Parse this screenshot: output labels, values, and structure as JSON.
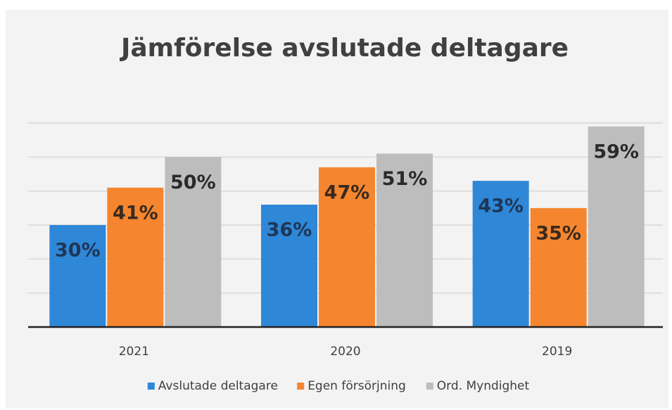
{
  "chart_data": {
    "type": "bar",
    "title": "Jämförelse avslutade deltagare",
    "categories": [
      "2021",
      "2020",
      "2019"
    ],
    "series": [
      {
        "name": "Avslutade deltagare",
        "color": "#2f87d8",
        "values": [
          30,
          36,
          43
        ],
        "value_labels": [
          "30%",
          "36%",
          "43%"
        ]
      },
      {
        "name": "Egen försörjning",
        "color": "#f5862f",
        "values": [
          41,
          47,
          35
        ],
        "value_labels": [
          "41%",
          "47%",
          "35%"
        ]
      },
      {
        "name": "Ord. Myndighet",
        "color": "#bdbdbd",
        "values": [
          50,
          51,
          59
        ],
        "value_labels": [
          "50%",
          "51%",
          "59%"
        ]
      }
    ],
    "ylim": [
      0,
      60
    ],
    "yticks": [
      0,
      10,
      20,
      30,
      40,
      50,
      60
    ],
    "grid": true,
    "legend": "bottom"
  }
}
